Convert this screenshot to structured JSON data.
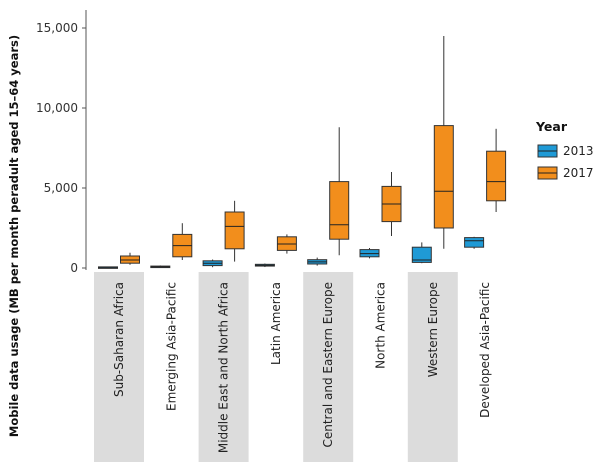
{
  "chart_data": {
    "type": "boxplot",
    "ylabel": "Mobile data usage (MB per month peradult aged 15–64 years)",
    "ylim": [
      0,
      15000
    ],
    "yticks": [
      0,
      5000,
      10000,
      15000
    ],
    "ytick_labels": [
      "0",
      "5,000",
      "10,000",
      "15,000"
    ],
    "categories": [
      "Sub-Saharan Africa",
      "Emerging Asia-Pacific",
      "Middle East and North Africa",
      "Latin America",
      "Central and Eastern Europe",
      "North America",
      "Western Europe",
      "Developed Asia-Pacific"
    ],
    "legend": {
      "title": "Year",
      "position": "right",
      "entries": [
        {
          "label": "2013",
          "color": "#1f9ad6"
        },
        {
          "label": "2017",
          "color": "#f28e1c"
        }
      ]
    },
    "series": [
      {
        "name": "2013",
        "color": "#1f9ad6",
        "boxes": [
          {
            "min": 10,
            "q1": 20,
            "median": 40,
            "q3": 70,
            "max": 90
          },
          {
            "min": 20,
            "q1": 40,
            "median": 70,
            "q3": 120,
            "max": 160
          },
          {
            "min": 50,
            "q1": 150,
            "median": 300,
            "q3": 450,
            "max": 530
          },
          {
            "min": 60,
            "q1": 120,
            "median": 170,
            "q3": 230,
            "max": 280
          },
          {
            "min": 150,
            "q1": 250,
            "median": 380,
            "q3": 520,
            "max": 650
          },
          {
            "min": 600,
            "q1": 700,
            "median": 900,
            "q3": 1150,
            "max": 1250
          },
          {
            "min": 300,
            "q1": 350,
            "median": 500,
            "q3": 1300,
            "max": 1600
          },
          {
            "min": 1200,
            "q1": 1300,
            "median": 1700,
            "q3": 1900,
            "max": 1950
          }
        ]
      },
      {
        "name": "2017",
        "color": "#f28e1c",
        "boxes": [
          {
            "min": 200,
            "q1": 300,
            "median": 500,
            "q3": 750,
            "max": 950
          },
          {
            "min": 500,
            "q1": 700,
            "median": 1400,
            "q3": 2100,
            "max": 2800
          },
          {
            "min": 400,
            "q1": 1200,
            "median": 2600,
            "q3": 3500,
            "max": 4200
          },
          {
            "min": 900,
            "q1": 1100,
            "median": 1500,
            "q3": 1950,
            "max": 2100
          },
          {
            "min": 800,
            "q1": 1800,
            "median": 2700,
            "q3": 5400,
            "max": 8800
          },
          {
            "min": 2000,
            "q1": 2900,
            "median": 4000,
            "q3": 5100,
            "max": 6000
          },
          {
            "min": 1200,
            "q1": 2500,
            "median": 4800,
            "q3": 8900,
            "max": 14500
          },
          {
            "min": 3500,
            "q1": 4200,
            "median": 5400,
            "q3": 7300,
            "max": 8700
          }
        ]
      }
    ],
    "category_background": "alternating grey bands"
  }
}
